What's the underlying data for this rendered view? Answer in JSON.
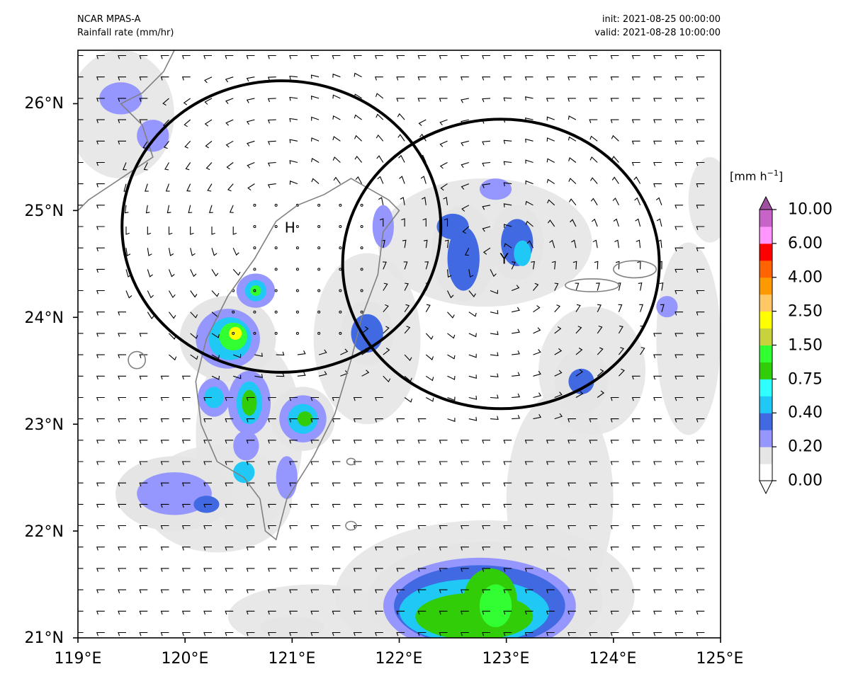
{
  "header": {
    "model": "NCAR MPAS-A",
    "variable": "Rainfall rate (mm/hr)",
    "init": "init: 2021-08-25 00:00:00",
    "valid": "valid: 2021-08-28 10:00:00"
  },
  "map": {
    "lon_range": [
      119,
      125
    ],
    "lat_range": [
      21,
      26.5
    ],
    "x_ticks": [
      "119°E",
      "120°E",
      "121°E",
      "122°E",
      "123°E",
      "124°E",
      "125°E"
    ],
    "y_ticks": [
      "21°N",
      "22°N",
      "23°N",
      "24°N",
      "25°N",
      "26°N"
    ],
    "markers": [
      {
        "label": "H",
        "lon": 120.98,
        "lat": 24.84
      },
      {
        "label": "Y",
        "lon": 122.98,
        "lat": 24.55
      }
    ],
    "circles": [
      {
        "center_lon": 120.9,
        "center_lat": 24.85,
        "radius_deg_lon": 1.49
      },
      {
        "center_lon": 122.95,
        "center_lat": 24.5,
        "radius_deg_lon": 1.48
      }
    ],
    "colors": {
      "coastline": "#808080",
      "circle": "#000000",
      "barb": "#000000"
    }
  },
  "colorbar": {
    "unit_label": "[mm h",
    "unit_exponent": "−1",
    "unit_close": "]",
    "tick_labels": [
      "0.00",
      "0.20",
      "0.40",
      "0.75",
      "1.50",
      "2.50",
      "4.00",
      "6.00",
      "10.00"
    ],
    "colors": [
      "#ffffff",
      "#e5e5e5",
      "#9696ff",
      "#4169e1",
      "#1fc8f5",
      "#30ffff",
      "#32cd09",
      "#32ff32",
      "#c8d23c",
      "#ffff00",
      "#ffc864",
      "#ff9900",
      "#ff6400",
      "#ff0000",
      "#ff96ff",
      "#c864c8"
    ],
    "extend_low_color": "#ffffff",
    "extend_high_color": "#a050a0"
  }
}
